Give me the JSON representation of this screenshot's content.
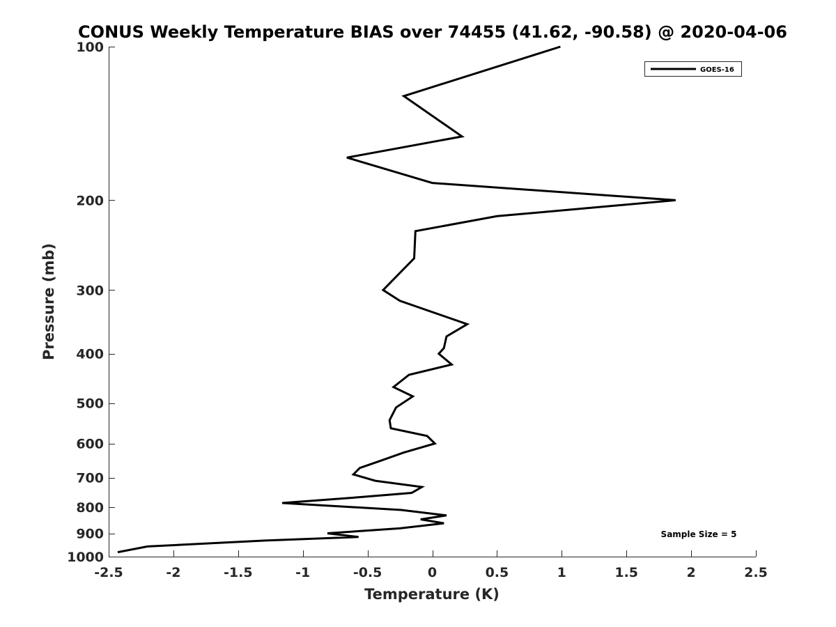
{
  "chart_data": {
    "type": "line",
    "title": "CONUS Weekly Temperature BIAS over 74455 (41.62, -90.58) @ 2020-04-06",
    "xlabel": "Temperature (K)",
    "ylabel": "Pressure (mb)",
    "xlim": [
      -2.5,
      2.5
    ],
    "ylim": [
      100,
      1000
    ],
    "y_scale": "log",
    "y_reversed": true,
    "grid": false,
    "legend_position": "top-right",
    "x_ticks": [
      -2.5,
      -2,
      -1.5,
      -1,
      -0.5,
      0,
      0.5,
      1,
      1.5,
      2,
      2.5
    ],
    "x_tick_labels": [
      "-2.5",
      "-2",
      "-1.5",
      "-1",
      "-0.5",
      "0",
      "0.5",
      "1",
      "1.5",
      "2",
      "2.5"
    ],
    "y_ticks": [
      100,
      200,
      300,
      400,
      500,
      600,
      700,
      800,
      900,
      1000
    ],
    "y_tick_labels": [
      "100",
      "200",
      "300",
      "400",
      "500",
      "600",
      "700",
      "800",
      "900",
      "1000"
    ],
    "series": [
      {
        "name": "GOES-16",
        "color": "#000000",
        "points": [
          {
            "x": 0.99,
            "p": 100
          },
          {
            "x": -0.22,
            "p": 125
          },
          {
            "x": 0.23,
            "p": 150
          },
          {
            "x": -0.66,
            "p": 165
          },
          {
            "x": 0.0,
            "p": 185
          },
          {
            "x": 1.88,
            "p": 200
          },
          {
            "x": 0.5,
            "p": 215
          },
          {
            "x": -0.13,
            "p": 230
          },
          {
            "x": -0.14,
            "p": 260
          },
          {
            "x": -0.38,
            "p": 300
          },
          {
            "x": -0.25,
            "p": 315
          },
          {
            "x": 0.27,
            "p": 350
          },
          {
            "x": 0.11,
            "p": 370
          },
          {
            "x": 0.09,
            "p": 390
          },
          {
            "x": 0.05,
            "p": 400
          },
          {
            "x": 0.15,
            "p": 420
          },
          {
            "x": -0.18,
            "p": 440
          },
          {
            "x": -0.3,
            "p": 465
          },
          {
            "x": -0.15,
            "p": 485
          },
          {
            "x": -0.28,
            "p": 510
          },
          {
            "x": -0.33,
            "p": 540
          },
          {
            "x": -0.32,
            "p": 560
          },
          {
            "x": -0.04,
            "p": 580
          },
          {
            "x": 0.02,
            "p": 600
          },
          {
            "x": -0.22,
            "p": 625
          },
          {
            "x": -0.41,
            "p": 650
          },
          {
            "x": -0.56,
            "p": 670
          },
          {
            "x": -0.61,
            "p": 690
          },
          {
            "x": -0.44,
            "p": 710
          },
          {
            "x": -0.08,
            "p": 730
          },
          {
            "x": -0.16,
            "p": 750
          },
          {
            "x": -0.57,
            "p": 765
          },
          {
            "x": -1.16,
            "p": 785
          },
          {
            "x": -0.24,
            "p": 810
          },
          {
            "x": 0.11,
            "p": 830
          },
          {
            "x": -0.09,
            "p": 845
          },
          {
            "x": 0.09,
            "p": 860
          },
          {
            "x": -0.25,
            "p": 880
          },
          {
            "x": -0.81,
            "p": 900
          },
          {
            "x": -0.57,
            "p": 915
          },
          {
            "x": -1.29,
            "p": 930
          },
          {
            "x": -2.2,
            "p": 955
          },
          {
            "x": -2.43,
            "p": 980
          }
        ]
      }
    ],
    "annotation": "Sample Size = 5"
  }
}
